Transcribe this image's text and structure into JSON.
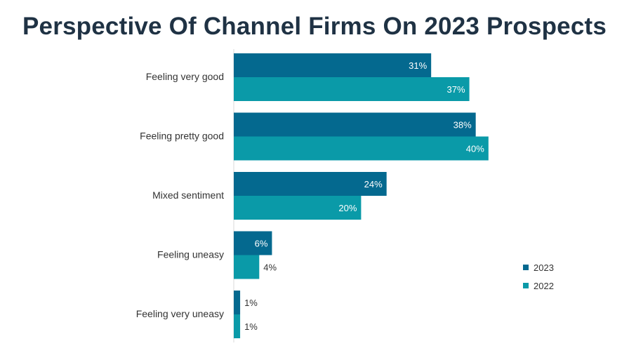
{
  "chart_data": {
    "type": "bar",
    "orientation": "horizontal",
    "title": "Perspective Of Channel Firms On 2023 Prospects",
    "categories": [
      "Feeling very good",
      "Feeling pretty good",
      "Mixed sentiment",
      "Feeling uneasy",
      "Feeling very uneasy"
    ],
    "series": [
      {
        "name": "2023",
        "values": [
          31,
          38,
          24,
          6,
          1
        ],
        "labels": [
          "31%",
          "38%",
          "24%",
          "6%",
          "1%"
        ],
        "color": "#04698f"
      },
      {
        "name": "2022",
        "values": [
          37,
          40,
          20,
          4,
          1
        ],
        "labels": [
          "37%",
          "40%",
          "20%",
          "4%",
          "1%"
        ],
        "color": "#0a9aa8"
      }
    ],
    "xlim": [
      0,
      45
    ],
    "grid": false,
    "legend": "right"
  }
}
